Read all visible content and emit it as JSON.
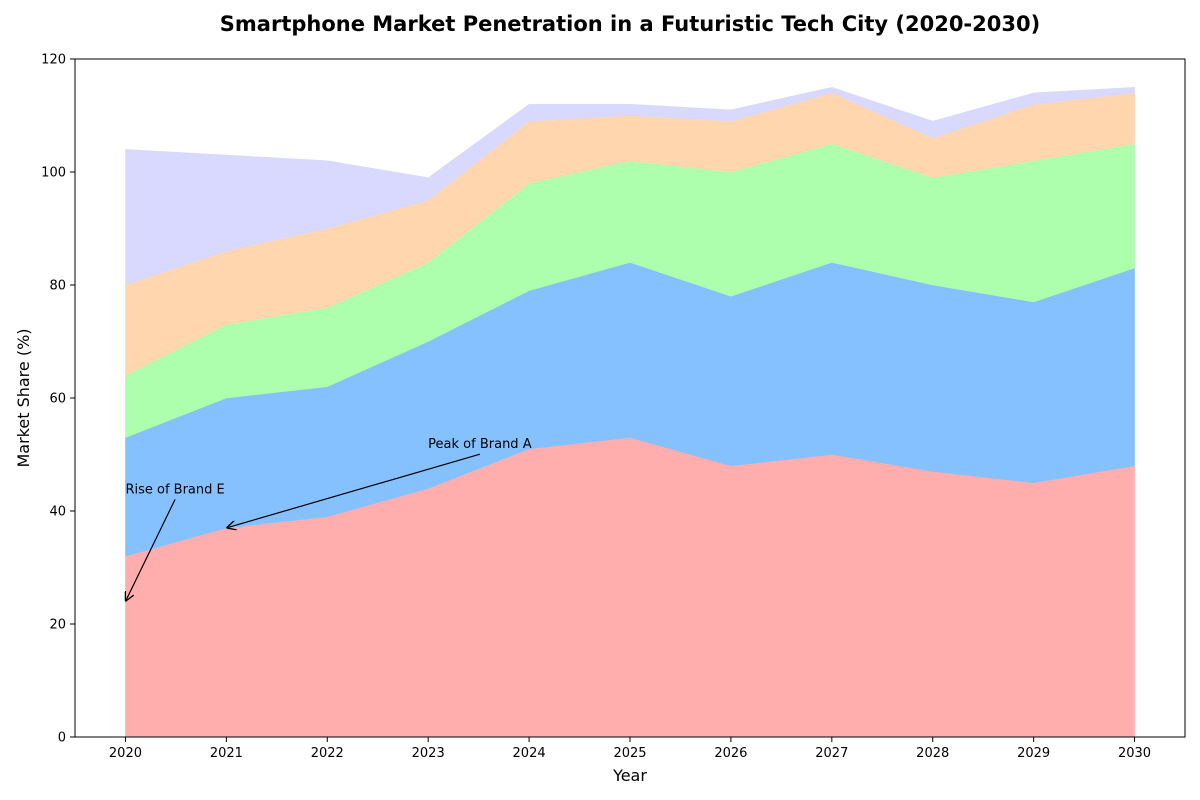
{
  "chart_data": {
    "type": "area",
    "stacked": true,
    "title": "Smartphone Market Penetration in a Futuristic Tech City (2020-2030)",
    "xlabel": "Year",
    "ylabel": "Market Share (%)",
    "x": [
      2020,
      2021,
      2022,
      2023,
      2024,
      2025,
      2026,
      2027,
      2028,
      2029,
      2030
    ],
    "x_tick_labels": [
      "2020",
      "2021",
      "2022",
      "2023",
      "2024",
      "2025",
      "2026",
      "2027",
      "2028",
      "2029",
      "2030"
    ],
    "xlim": [
      2019.5,
      2030.5
    ],
    "ylim": [
      0,
      120
    ],
    "y_ticks": [
      0,
      20,
      40,
      60,
      80,
      100,
      120
    ],
    "y_tick_labels": [
      "0",
      "20",
      "40",
      "60",
      "80",
      "100",
      "120"
    ],
    "grid": false,
    "legend": "none",
    "series": [
      {
        "color": "#ffadad",
        "values": [
          32,
          37,
          39,
          44,
          51,
          53,
          48,
          50,
          47,
          45,
          48
        ]
      },
      {
        "color": "#85c1ff",
        "values": [
          21,
          23,
          23,
          26,
          28,
          31,
          30,
          34,
          33,
          32,
          35
        ]
      },
      {
        "color": "#adffad",
        "values": [
          11,
          13,
          14,
          14,
          19,
          18,
          22,
          21,
          19,
          25,
          22
        ]
      },
      {
        "color": "#ffd6ad",
        "values": [
          16,
          13,
          14,
          11,
          11,
          8,
          9,
          9,
          7,
          10,
          9
        ]
      },
      {
        "color": "#d9d9ff",
        "values": [
          24,
          17,
          12,
          4,
          3,
          2,
          2,
          1,
          3,
          2,
          1
        ]
      }
    ],
    "annotations": [
      {
        "text": "Rise of Brand E",
        "text_x": 2020,
        "text_y": 44,
        "point_x": 2020,
        "point_y": 24
      },
      {
        "text": "Peak of Brand A",
        "text_x": 2023,
        "text_y": 52,
        "point_x": 2021,
        "point_y": 37
      }
    ]
  }
}
